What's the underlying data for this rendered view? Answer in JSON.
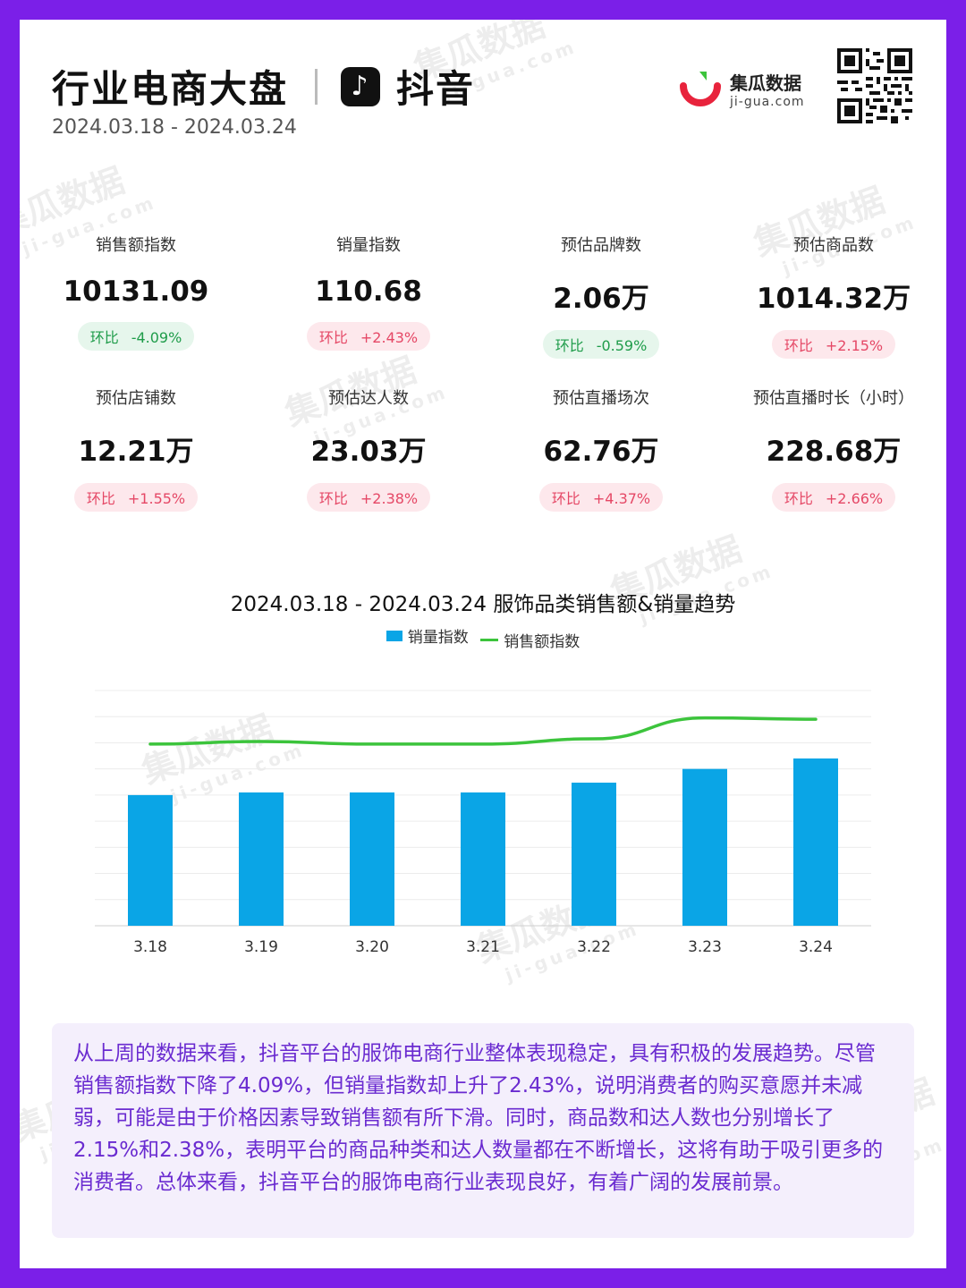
{
  "header": {
    "title": "行业电商大盘",
    "platform": "抖音",
    "date_range": "2024.03.18 - 2024.03.24",
    "brand_cn": "集瓜数据",
    "brand_en": "ji-gua.com"
  },
  "watermark": {
    "cn": "集瓜数据",
    "en": "ji-gua.com"
  },
  "metrics": [
    {
      "label": "销售额指数",
      "value": "10131.09",
      "tag": "环比",
      "change": "-4.09%",
      "trend": "down"
    },
    {
      "label": "销量指数",
      "value": "110.68",
      "tag": "环比",
      "change": "+2.43%",
      "trend": "up"
    },
    {
      "label": "预估品牌数",
      "value": "2.06万",
      "tag": "环比",
      "change": "-0.59%",
      "trend": "down"
    },
    {
      "label": "预估商品数",
      "value": "1014.32万",
      "tag": "环比",
      "change": "+2.15%",
      "trend": "up"
    },
    {
      "label": "预估店铺数",
      "value": "12.21万",
      "tag": "环比",
      "change": "+1.55%",
      "trend": "up"
    },
    {
      "label": "预估达人数",
      "value": "23.03万",
      "tag": "环比",
      "change": "+2.38%",
      "trend": "up"
    },
    {
      "label": "预估直播场次",
      "value": "62.76万",
      "tag": "环比",
      "change": "+4.37%",
      "trend": "up"
    },
    {
      "label": "预估直播时长（小时）",
      "value": "228.68万",
      "tag": "环比",
      "change": "+2.66%",
      "trend": "up"
    }
  ],
  "colors": {
    "bar": "#0aa5e6",
    "line": "#3cc43c",
    "down": "#1f9c4a",
    "up": "#e54866",
    "summary_text": "#6a2bd0"
  },
  "chart_data": {
    "type": "bar",
    "title": "2024.03.18 - 2024.03.24 服饰品类销售额&销量趋势",
    "categories": [
      "3.18",
      "3.19",
      "3.20",
      "3.21",
      "3.22",
      "3.23",
      "3.24"
    ],
    "series": [
      {
        "name": "销量指数",
        "type": "bar",
        "values": [
          100,
          102,
          102,
          102,
          109.5,
          120,
          128
        ]
      },
      {
        "name": "销售额指数",
        "type": "line",
        "values": [
          139,
          141,
          139,
          139,
          143,
          159,
          158
        ]
      }
    ],
    "ylim": [
      0,
      180
    ],
    "grid": true,
    "y_tick_labels_visible": false,
    "legend_position": "top-center"
  },
  "summary": "从上周的数据来看，抖音平台的服饰电商行业整体表现稳定，具有积极的发展趋势。尽管销售额指数下降了4.09%，但销量指数却上升了2.43%，说明消费者的购买意愿并未减弱，可能是由于价格因素导致销售额有所下滑。同时，商品数和达人数也分别增长了2.15%和2.38%，表明平台的商品种类和达人数量都在不断增长，这将有助于吸引更多的消费者。总体来看，抖音平台的服饰电商行业表现良好，有着广阔的发展前景。"
}
